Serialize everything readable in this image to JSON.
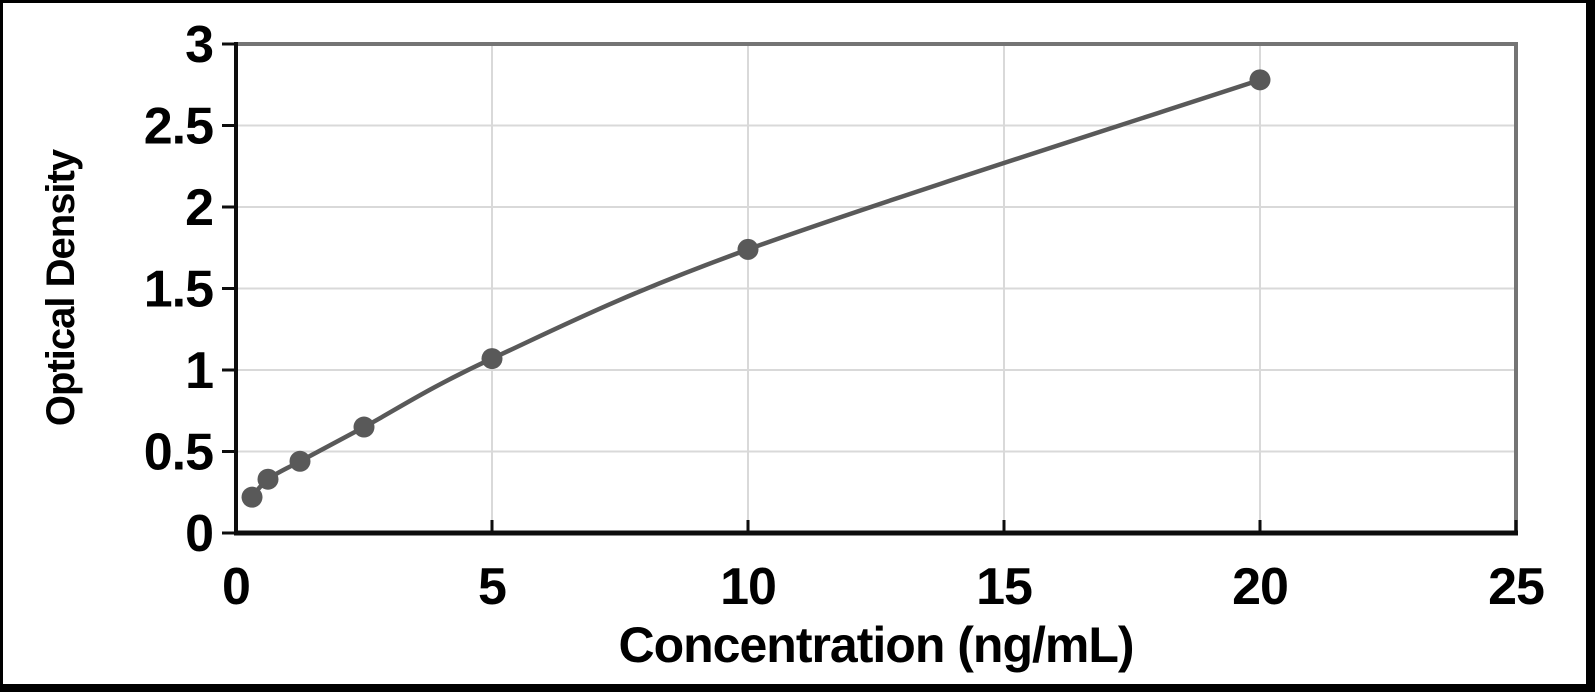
{
  "chart_data": {
    "type": "line",
    "title": "",
    "xlabel": "Concentration (ng/mL)",
    "ylabel": "Optical Density",
    "x": [
      0.313,
      0.625,
      1.25,
      2.5,
      5,
      10,
      20
    ],
    "y": [
      0.22,
      0.33,
      0.44,
      0.65,
      1.07,
      1.74,
      2.78
    ],
    "xlim": [
      0,
      25
    ],
    "ylim": [
      0,
      3
    ],
    "x_ticks": [
      0,
      5,
      10,
      15,
      20,
      25
    ],
    "y_ticks": [
      0,
      0.5,
      1,
      1.5,
      2,
      2.5,
      3
    ],
    "grid": true,
    "legend": false,
    "line_smooth": true,
    "marker": "circle",
    "colors": {
      "series": "#595959",
      "gridline": "#d9d9d9",
      "plot_border": "#747474",
      "axis": "#0d0d0d",
      "text": "#000000",
      "frame": "#000000",
      "background": "#ffffff"
    }
  }
}
